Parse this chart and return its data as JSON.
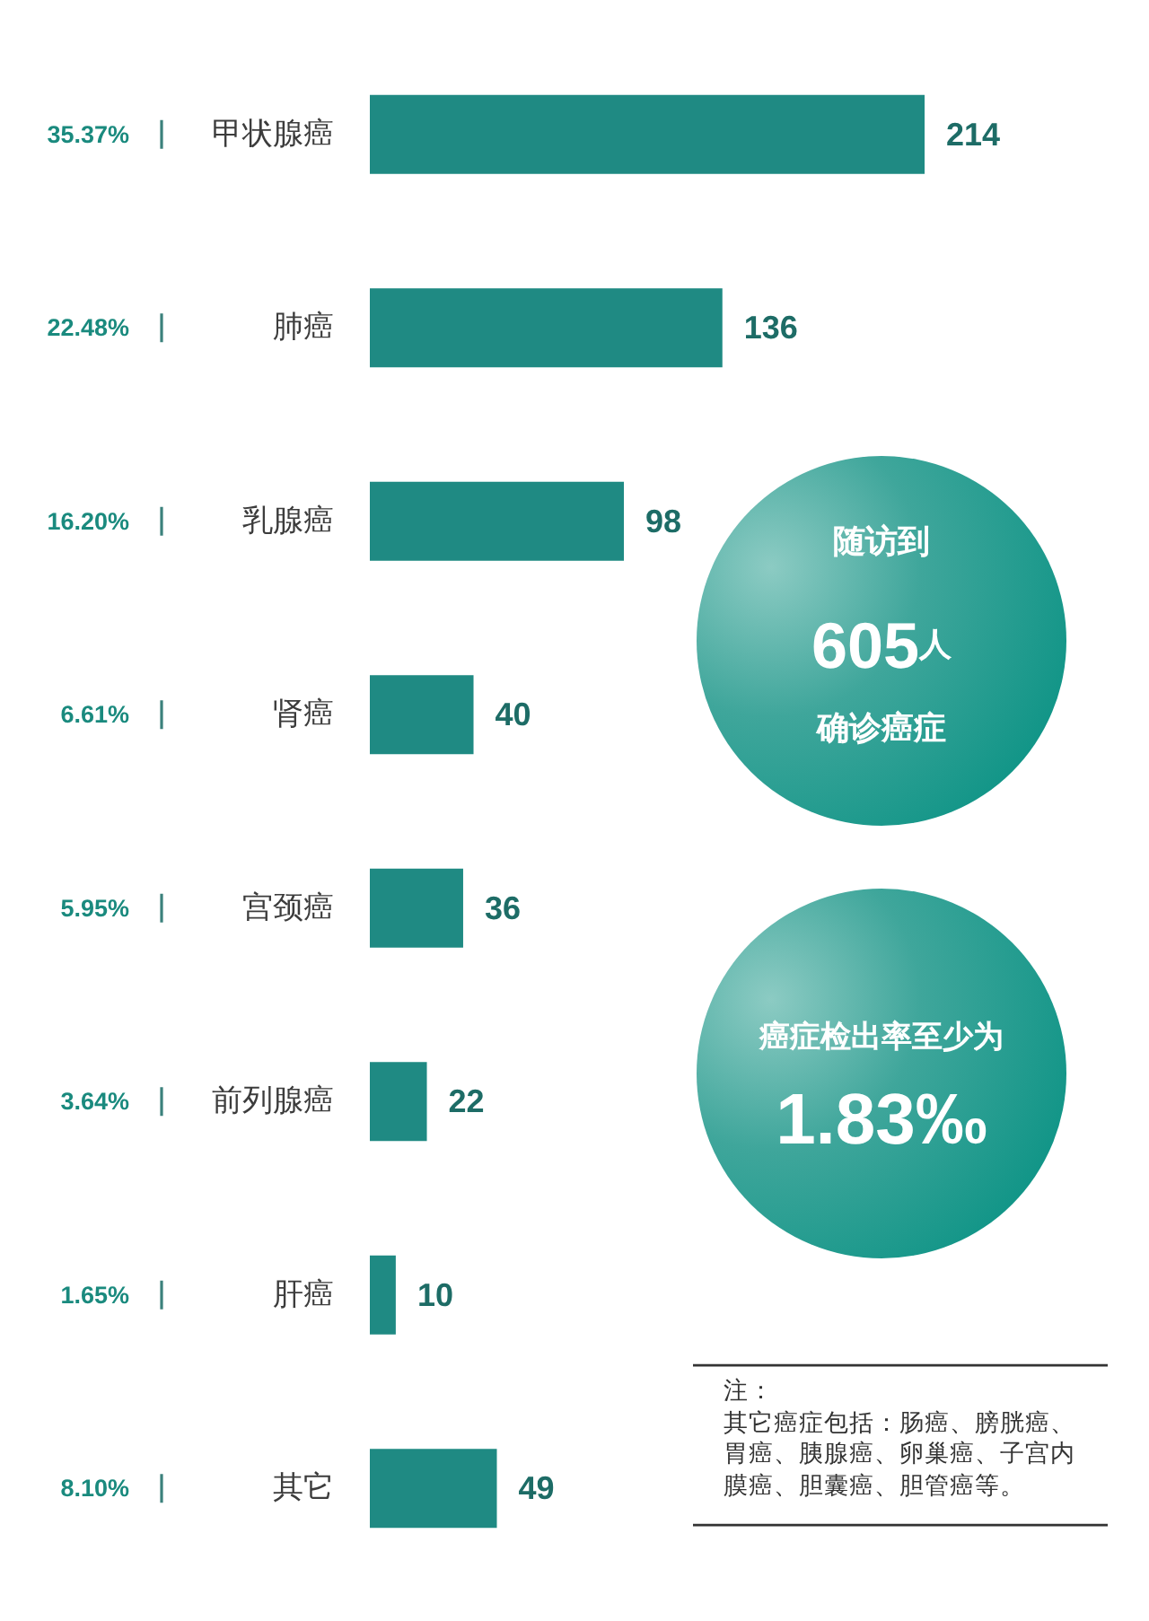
{
  "chart_data": {
    "type": "bar",
    "orientation": "horizontal",
    "categories": [
      "甲状腺癌",
      "肺癌",
      "乳腺癌",
      "肾癌",
      "宫颈癌",
      "前列腺癌",
      "肝癌",
      "其它"
    ],
    "values": [
      214,
      136,
      98,
      40,
      36,
      22,
      10,
      49
    ],
    "color": "#1f8a83",
    "data_labels": true,
    "tick_labels": "y",
    "annotations": [
      "35.37%",
      "22.48%",
      "16.20%",
      "6.61%",
      "5.95%",
      "3.64%",
      "1.65%",
      "8.10%",
      "随访到",
      "605人",
      "确诊癌症",
      "癌症检出率至少为",
      "1.83‰",
      "注：",
      "其它癌症包括：肠癌、膀胱癌、胃癌、胰腺癌、卵巢癌、子宫内膜癌、胆囊癌、胆管癌等。"
    ]
  }
}
